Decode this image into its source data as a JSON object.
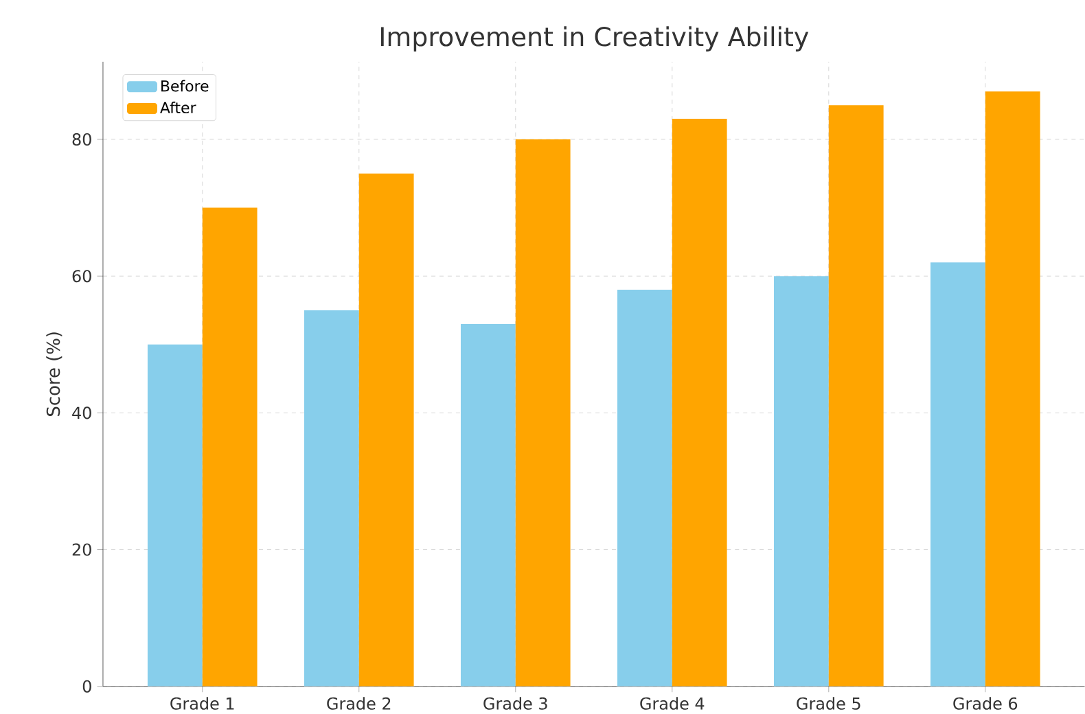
{
  "chart_data": {
    "type": "bar",
    "title": "Improvement in Creativity Ability",
    "ylabel": "Score (%)",
    "categories": [
      "Grade 1",
      "Grade 2",
      "Grade 3",
      "Grade 4",
      "Grade 5",
      "Grade 6"
    ],
    "series": [
      {
        "name": "Before",
        "color": "#87ceeb",
        "values": [
          50,
          55,
          53,
          58,
          60,
          62
        ]
      },
      {
        "name": "After",
        "color": "#ffa500",
        "values": [
          70,
          75,
          80,
          83,
          85,
          87
        ]
      }
    ],
    "ylim": [
      0,
      91.35
    ],
    "yticks": [
      0,
      20,
      40,
      60,
      80
    ],
    "grid": true,
    "legend": "top left"
  }
}
